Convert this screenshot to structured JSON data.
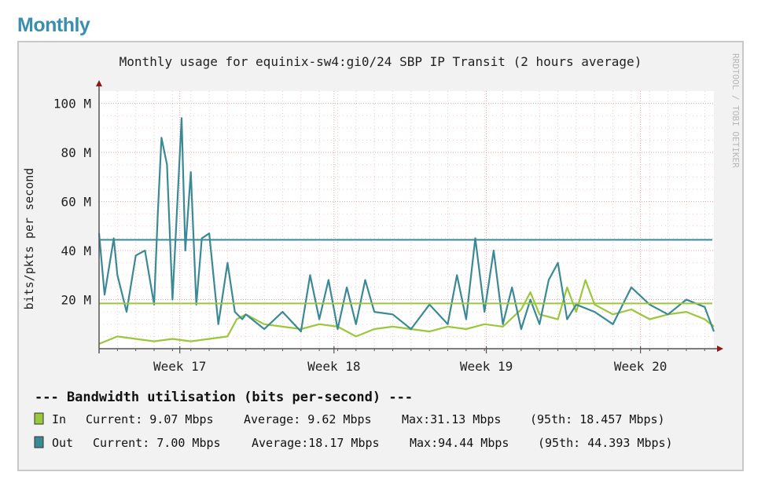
{
  "page": {
    "heading": "Monthly"
  },
  "chart_data": {
    "type": "line",
    "title": "Monthly usage for equinix-sw4:gi0/24 SBP IP Transit (2 hours average)",
    "ylabel": "bits/pkts per second",
    "xlabel": "",
    "watermark": "RRDTOOL / TOBI OETIKER",
    "ylim": [
      0,
      105
    ],
    "xlim": [
      0,
      33.5
    ],
    "y_unit": "M",
    "y_ticks": [
      {
        "value": 20,
        "label": "20 M"
      },
      {
        "value": 40,
        "label": "40 M"
      },
      {
        "value": 60,
        "label": "60 M"
      },
      {
        "value": 80,
        "label": "80 M"
      },
      {
        "value": 100,
        "label": "100 M"
      }
    ],
    "x_ticks": [
      {
        "value": 4.4,
        "label": "Week 17"
      },
      {
        "value": 12.8,
        "label": "Week 18"
      },
      {
        "value": 21.1,
        "label": "Week 19"
      },
      {
        "value": 29.5,
        "label": "Week 20"
      }
    ],
    "grid": true,
    "colors": {
      "in": "#9ac83c",
      "out": "#3a8a96",
      "grid": "#e89a9a",
      "axis": "#8b1a1a",
      "plot_bg": "#ffffff"
    },
    "series": [
      {
        "name": "In",
        "x": [
          0,
          1,
          2,
          3,
          4,
          5,
          6,
          7,
          7.5,
          8,
          9,
          10,
          11,
          12,
          13,
          14,
          15,
          16,
          17,
          18,
          19,
          20,
          21,
          22,
          23,
          23.5,
          24,
          25,
          25.5,
          26,
          26.5,
          27,
          28,
          29,
          30,
          31,
          32,
          33,
          33.5
        ],
        "values": [
          2,
          5,
          4,
          3,
          4,
          3,
          4,
          5,
          12,
          14,
          10,
          9,
          8,
          10,
          9,
          5,
          8,
          9,
          8,
          7,
          9,
          8,
          10,
          9,
          16,
          23,
          14,
          12,
          25,
          15,
          28,
          18,
          14,
          16,
          12,
          14,
          15,
          12,
          9.07
        ]
      },
      {
        "name": "Out",
        "x": [
          0,
          0.3,
          0.8,
          1,
          1.5,
          2,
          2.5,
          3,
          3.2,
          3.4,
          3.7,
          4,
          4.5,
          4.7,
          5,
          5.3,
          5.6,
          6,
          6.5,
          7,
          7.4,
          7.8,
          8,
          9,
          10,
          11,
          11.5,
          12,
          12.5,
          13,
          13.5,
          14,
          14.5,
          15,
          16,
          17,
          18,
          19,
          19.5,
          20,
          20.5,
          21,
          21.5,
          22,
          22.5,
          23,
          23.5,
          24,
          24.5,
          25,
          25.5,
          26,
          27,
          28,
          29,
          30,
          31,
          32,
          33,
          33.5
        ],
        "values": [
          47,
          22,
          45,
          30,
          15,
          38,
          40,
          18,
          55,
          86,
          75,
          20,
          94,
          40,
          72,
          18,
          45,
          47,
          10,
          35,
          15,
          12,
          14,
          8,
          15,
          7,
          30,
          12,
          28,
          8,
          25,
          10,
          28,
          15,
          14,
          8,
          18,
          10,
          30,
          12,
          45,
          15,
          40,
          10,
          25,
          8,
          20,
          10,
          28,
          35,
          12,
          18,
          15,
          10,
          25,
          18,
          14,
          20,
          17,
          7.0
        ]
      }
    ],
    "hlines": [
      {
        "series": "In",
        "value": 18.457,
        "label": "95th: 18.457 Mbps"
      },
      {
        "series": "Out",
        "value": 44.393,
        "label": "95th: 44.393 Mbps"
      }
    ],
    "legend": {
      "heading": "--- Bandwidth utilisation (bits per-second) ---",
      "rows": [
        {
          "key": "in",
          "name": "In",
          "current": "Current: 9.07 Mbps",
          "average": "Average: 9.62 Mbps",
          "max": "Max:31.13 Mbps",
          "p95": "(95th: 18.457 Mbps)"
        },
        {
          "key": "out",
          "name": "Out",
          "current": "Current: 7.00 Mbps",
          "average": "Average:18.17 Mbps",
          "max": "Max:94.44 Mbps",
          "p95": "(95th: 44.393 Mbps)"
        }
      ]
    }
  }
}
